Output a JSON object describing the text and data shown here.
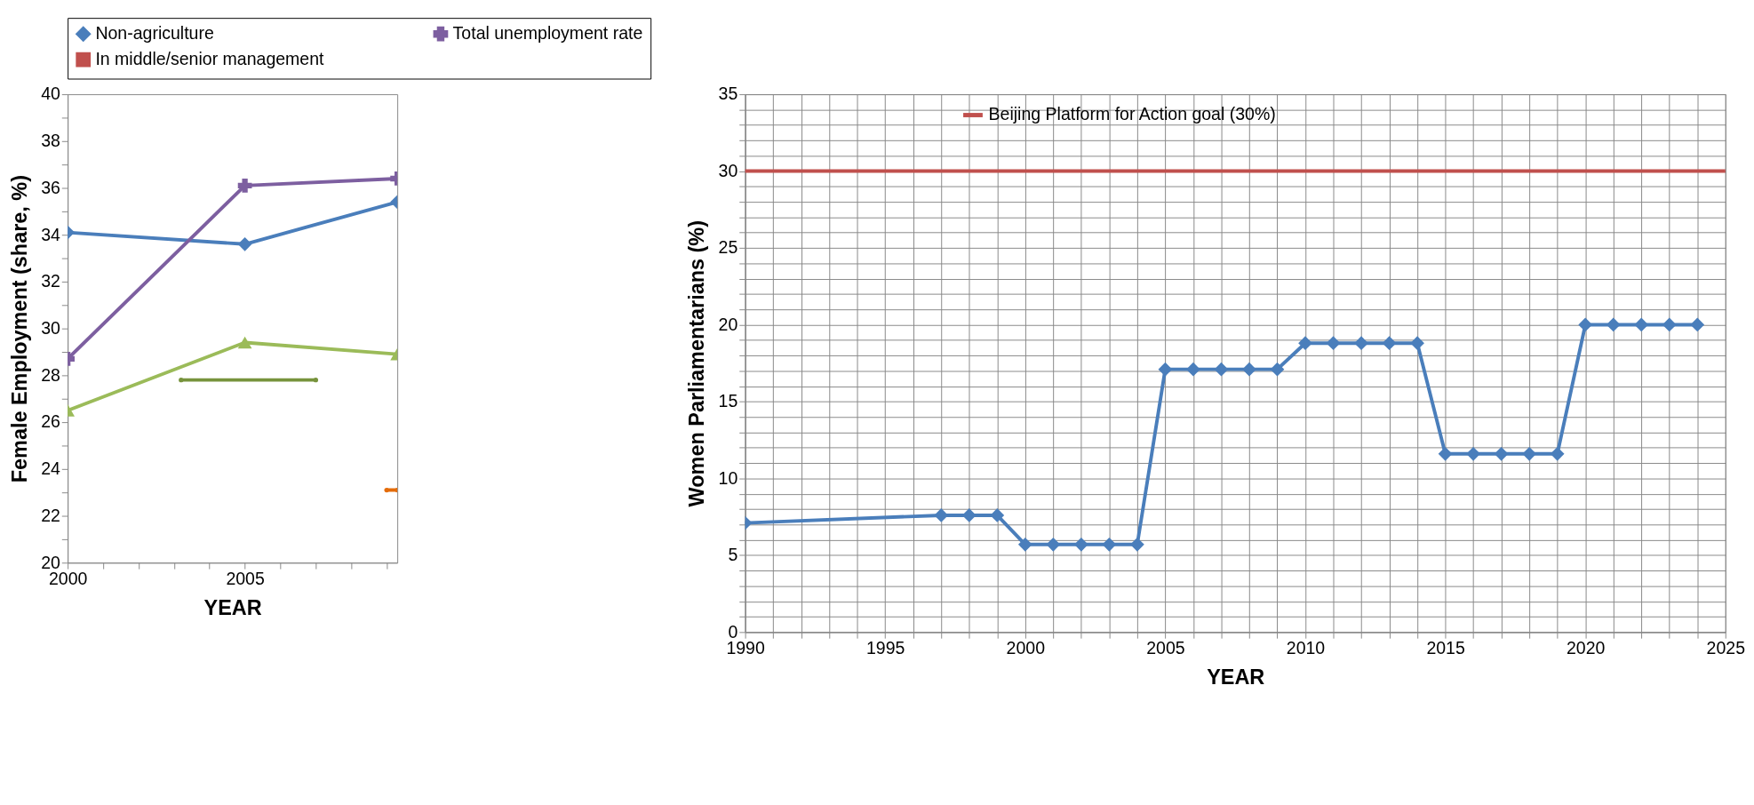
{
  "chart_data": [
    {
      "type": "line",
      "ylabel": "Female Employment (share, %)",
      "xlabel": "YEAR",
      "legend": "top",
      "grid": false,
      "xlim": [
        2000,
        2009.3
      ],
      "xticks": [
        2000,
        {
          "value": 2001,
          "label": null
        },
        {
          "value": 2002,
          "label": null
        },
        {
          "value": 2003,
          "label": null
        },
        {
          "value": 2004,
          "label": null
        },
        2005,
        {
          "value": 2006,
          "label": null
        },
        {
          "value": 2007,
          "label": null
        },
        {
          "value": 2008,
          "label": null
        },
        {
          "value": 2009,
          "label": null
        }
      ],
      "ylim": [
        20,
        40
      ],
      "yticks": [
        20,
        {
          "value": 21,
          "label": null
        },
        22,
        {
          "value": 23,
          "label": null
        },
        24,
        {
          "value": 25,
          "label": null
        },
        26,
        {
          "value": 27,
          "label": null
        },
        28,
        {
          "value": 29,
          "label": null
        },
        30,
        {
          "value": 31,
          "label": null
        },
        32,
        {
          "value": 33,
          "label": null
        },
        34,
        {
          "value": 35,
          "label": null
        },
        36,
        {
          "value": 37,
          "label": null
        },
        38,
        {
          "value": 39,
          "label": null
        },
        40
      ],
      "series": [
        {
          "name": "Non-agriculture",
          "color": "#4a7ebb",
          "marker": "diamond",
          "x": [
            2000,
            2005,
            2009.3
          ],
          "values": [
            34.1,
            33.6,
            35.4
          ]
        },
        {
          "name": "Total unemployment rate",
          "color": "#7d5fa0",
          "marker": "cross",
          "x": [
            2000,
            2005,
            2009.3
          ],
          "values": [
            28.7,
            36.1,
            36.4
          ]
        },
        {
          "color": "#9bbb59",
          "marker": "triangle",
          "x": [
            2000,
            2005,
            2009.3
          ],
          "values": [
            26.5,
            29.4,
            28.9
          ]
        },
        {
          "name": "In middle/senior management",
          "color": "#c0504d",
          "marker": "square"
        },
        {
          "color": "#77933c",
          "marker": "none",
          "x": [
            2003.2,
            2007
          ],
          "values": [
            27.8,
            27.8
          ]
        },
        {
          "color": "#e46c0a",
          "marker": "none",
          "x": [
            2009,
            2009.3
          ],
          "values": [
            23.1,
            23.1
          ]
        }
      ]
    },
    {
      "type": "line",
      "ylabel": "Women Parliamentarians (%)",
      "xlabel": "YEAR",
      "legend": "top",
      "grid": true,
      "marker": "diamond",
      "line_style": "solid",
      "xlim": [
        1990,
        2025
      ],
      "xticks": [
        1990,
        {
          "value": 1991,
          "label": null
        },
        {
          "value": 1992,
          "label": null
        },
        {
          "value": 1993,
          "label": null
        },
        {
          "value": 1994,
          "label": null
        },
        1995,
        {
          "value": 1996,
          "label": null
        },
        {
          "value": 1997,
          "label": null
        },
        {
          "value": 1998,
          "label": null
        },
        {
          "value": 1999,
          "label": null
        },
        2000,
        {
          "value": 2001,
          "label": null
        },
        {
          "value": 2002,
          "label": null
        },
        {
          "value": 2003,
          "label": null
        },
        {
          "value": 2004,
          "label": null
        },
        2005,
        {
          "value": 2006,
          "label": null
        },
        {
          "value": 2007,
          "label": null
        },
        {
          "value": 2008,
          "label": null
        },
        {
          "value": 2009,
          "label": null
        },
        2010,
        {
          "value": 2011,
          "label": null
        },
        {
          "value": 2012,
          "label": null
        },
        {
          "value": 2013,
          "label": null
        },
        {
          "value": 2014,
          "label": null
        },
        2015,
        {
          "value": 2016,
          "label": null
        },
        {
          "value": 2017,
          "label": null
        },
        {
          "value": 2018,
          "label": null
        },
        {
          "value": 2019,
          "label": null
        },
        2020,
        {
          "value": 2021,
          "label": null
        },
        {
          "value": 2022,
          "label": null
        },
        {
          "value": 2023,
          "label": null
        },
        {
          "value": 2024,
          "label": null
        },
        2025
      ],
      "ylim": [
        0,
        35
      ],
      "yticks": [
        0,
        {
          "value": 1,
          "label": null
        },
        {
          "value": 2,
          "label": null
        },
        {
          "value": 3,
          "label": null
        },
        {
          "value": 4,
          "label": null
        },
        5,
        {
          "value": 6,
          "label": null
        },
        {
          "value": 7,
          "label": null
        },
        {
          "value": 8,
          "label": null
        },
        {
          "value": 9,
          "label": null
        },
        10,
        {
          "value": 11,
          "label": null
        },
        {
          "value": 12,
          "label": null
        },
        {
          "value": 13,
          "label": null
        },
        {
          "value": 14,
          "label": null
        },
        15,
        {
          "value": 16,
          "label": null
        },
        {
          "value": 17,
          "label": null
        },
        {
          "value": 18,
          "label": null
        },
        {
          "value": 19,
          "label": null
        },
        20,
        {
          "value": 21,
          "label": null
        },
        {
          "value": 22,
          "label": null
        },
        {
          "value": 23,
          "label": null
        },
        {
          "value": 24,
          "label": null
        },
        25,
        {
          "value": 26,
          "label": null
        },
        {
          "value": 27,
          "label": null
        },
        {
          "value": 28,
          "label": null
        },
        {
          "value": 29,
          "label": null
        },
        30,
        {
          "value": 31,
          "label": null
        },
        {
          "value": 32,
          "label": null
        },
        {
          "value": 33,
          "label": null
        },
        {
          "value": 34,
          "label": null
        },
        35
      ],
      "x": [
        1990,
        1997,
        1998,
        1999,
        2000,
        2001,
        2002,
        2003,
        2004,
        2005,
        2006,
        2007,
        2008,
        2009,
        2010,
        2011,
        2012,
        2013,
        2014,
        2015,
        2016,
        2017,
        2018,
        2019,
        2020,
        2021,
        2022,
        2023,
        2024
      ],
      "series": [
        {
          "color": "#4a7ebb",
          "values": [
            7.1,
            7.6,
            7.6,
            7.6,
            5.7,
            5.7,
            5.7,
            5.7,
            5.7,
            17.1,
            17.1,
            17.1,
            17.1,
            17.1,
            18.8,
            18.8,
            18.8,
            18.8,
            18.8,
            11.6,
            11.6,
            11.6,
            11.6,
            11.6,
            20.0,
            20.0,
            20.0,
            20.0,
            20.0
          ]
        }
      ],
      "ref_lines": [
        {
          "axis": "y",
          "value": 30,
          "label": "Beijing Platform for Action goal (30%)",
          "color": "#c0504d"
        }
      ]
    }
  ]
}
